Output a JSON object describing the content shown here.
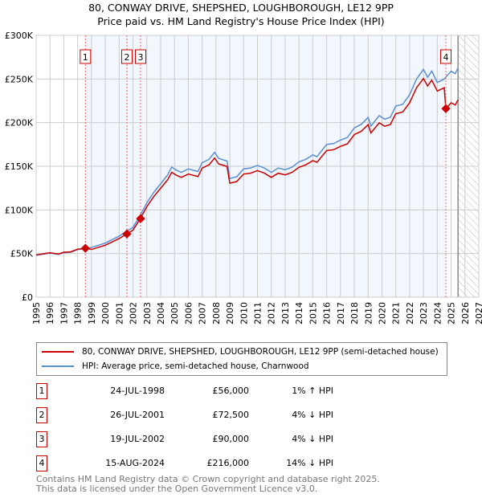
{
  "chart_data": {
    "type": "line",
    "title": "80, CONWAY DRIVE, SHEPSHED, LOUGHBOROUGH, LE12 9PP",
    "subtitle": "Price paid vs. HM Land Registry's House Price Index (HPI)",
    "xlim": [
      1995,
      2027
    ],
    "ylim": [
      0,
      300000
    ],
    "x_ticks": [
      "1995",
      "1996",
      "1997",
      "1998",
      "1999",
      "2000",
      "2001",
      "2002",
      "2003",
      "2004",
      "2005",
      "2006",
      "2007",
      "2008",
      "2009",
      "2010",
      "2011",
      "2012",
      "2013",
      "2014",
      "2015",
      "2016",
      "2017",
      "2018",
      "2019",
      "2020",
      "2021",
      "2022",
      "2023",
      "2024",
      "2025",
      "2026",
      "2027"
    ],
    "y_ticks": [
      {
        "v": 0,
        "label": "£0"
      },
      {
        "v": 50000,
        "label": "£50K"
      },
      {
        "v": 100000,
        "label": "£100K"
      },
      {
        "v": 150000,
        "label": "£150K"
      },
      {
        "v": 200000,
        "label": "£200K"
      },
      {
        "v": 250000,
        "label": "£250K"
      },
      {
        "v": 300000,
        "label": "£300K"
      }
    ],
    "grid": true,
    "shaded_range": [
      1998.56,
      2024.62
    ],
    "forecast_hatch_from": 2025.5,
    "hpi_series": {
      "name": "HPI: Average price, semi-detached house, Charnwood",
      "color": "#5b8fd4",
      "x": [
        1995,
        1996,
        1996.6,
        1997,
        1997.5,
        1998,
        1998.5,
        1999,
        2000,
        2001,
        2001.5,
        2002,
        2002.5,
        2003,
        2003.5,
        2004,
        2004.5,
        2004.8,
        2005.2,
        2005.5,
        2006,
        2006.7,
        2007,
        2007.5,
        2007.9,
        2008.2,
        2008.8,
        2009.0,
        2009.5,
        2010,
        2010.5,
        2011,
        2011.5,
        2012,
        2012.5,
        2013,
        2013.5,
        2014,
        2014.5,
        2015,
        2015.3,
        2016,
        2016.5,
        2017,
        2017.5,
        2018,
        2018.5,
        2019,
        2019.2,
        2019.8,
        2020.2,
        2020.6,
        2021,
        2021.5,
        2022,
        2022.5,
        2023,
        2023.3,
        2023.6,
        2024,
        2024.5,
        2025,
        2025.3,
        2025.5
      ],
      "y": [
        48000,
        50500,
        49000,
        51000,
        51500,
        54500,
        55500,
        57000,
        62000,
        70000,
        75000,
        80000,
        93000,
        108000,
        120000,
        130000,
        140000,
        149000,
        145000,
        143000,
        147000,
        144000,
        154000,
        158000,
        166000,
        159000,
        156000,
        136000,
        138000,
        147000,
        148000,
        151000,
        148000,
        143000,
        148000,
        146000,
        149000,
        155000,
        158000,
        163000,
        161000,
        175000,
        176000,
        180000,
        183000,
        194000,
        198000,
        206000,
        196000,
        208000,
        204000,
        206000,
        219000,
        221000,
        232000,
        250000,
        261000,
        252000,
        259000,
        246000,
        250000,
        259000,
        256000,
        263000
      ]
    },
    "price_series": {
      "name": "80, CONWAY DRIVE, SHEPSHED, LOUGHBOROUGH, LE12 9PP (semi-detached house)",
      "color": "#cc0000"
    },
    "sales": [
      {
        "n": "1",
        "x": 1998.56,
        "y": 56000,
        "date": "24-JUL-1998",
        "price": "£56,000",
        "hpi": "1% ↑ HPI"
      },
      {
        "n": "2",
        "x": 2001.56,
        "y": 72500,
        "date": "26-JUL-2001",
        "price": "£72,500",
        "hpi": "4% ↓ HPI"
      },
      {
        "n": "3",
        "x": 2002.55,
        "y": 90000,
        "date": "19-JUL-2002",
        "price": "£90,000",
        "hpi": "4% ↓ HPI"
      },
      {
        "n": "4",
        "x": 2024.62,
        "y": 216000,
        "date": "15-AUG-2024",
        "price": "£216,000",
        "hpi": "14% ↓ HPI"
      }
    ]
  },
  "footer": {
    "line1": "Contains HM Land Registry data © Crown copyright and database right 2025.",
    "line2": "This data is licensed under the Open Government Licence v3.0."
  }
}
